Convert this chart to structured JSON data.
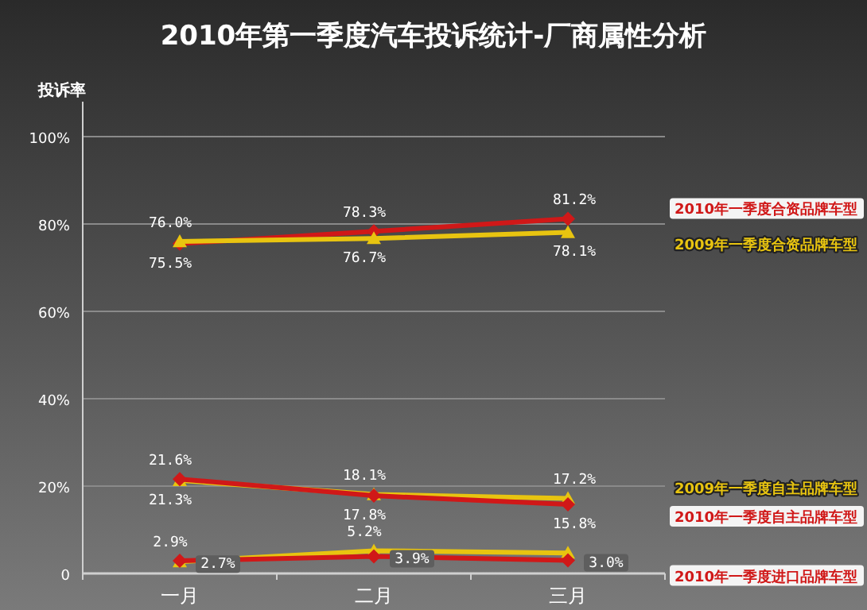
{
  "chart_data": {
    "type": "line",
    "title": "2010年第一季度汽车投诉统计-厂商属性分析",
    "ylabel": "投诉率",
    "categories": [
      "一月",
      "二月",
      "三月"
    ],
    "ylim": [
      0,
      100
    ],
    "yticks": [
      {
        "value": 0,
        "label": "0"
      },
      {
        "value": 20,
        "label": "20%"
      },
      {
        "value": 40,
        "label": "40%"
      },
      {
        "value": 60,
        "label": "60%"
      },
      {
        "value": 80,
        "label": "80%"
      },
      {
        "value": 100,
        "label": "100%"
      }
    ],
    "grid": "y",
    "series": [
      {
        "name": "2010年一季度合资品牌车型",
        "color": "#d01818",
        "marker": "diamond",
        "values": [
          75.5,
          78.3,
          81.2
        ],
        "value_labels": [
          "75.5%",
          "78.3%",
          "81.2%"
        ]
      },
      {
        "name": "2009年一季度合资品牌车型",
        "color": "#e8c410",
        "marker": "triangle",
        "values": [
          76.0,
          76.7,
          78.1
        ],
        "value_labels": [
          "76.0%",
          "76.7%",
          "78.1%"
        ]
      },
      {
        "name": "2009年一季度自主品牌车型",
        "color": "#e8c410",
        "marker": "triangle",
        "values": [
          21.3,
          18.1,
          17.2
        ],
        "value_labels": [
          "21.3%",
          "18.1%",
          "17.2%"
        ]
      },
      {
        "name": "2010年一季度自主品牌车型",
        "color": "#d01818",
        "marker": "diamond",
        "values": [
          21.6,
          17.8,
          15.8
        ],
        "value_labels": [
          "21.6%",
          "17.8%",
          "15.8%"
        ]
      },
      {
        "color": "#e8c410",
        "marker": "triangle",
        "values": [
          2.7,
          5.2,
          4.7
        ],
        "value_labels": [
          "2.7%",
          "5.2%",
          null
        ]
      },
      {
        "name": "2010年一季度进口品牌车型",
        "color": "#d01818",
        "marker": "diamond",
        "values": [
          2.9,
          3.9,
          3.0
        ],
        "value_labels": [
          "2.9%",
          "3.9%",
          "3.0%"
        ]
      }
    ]
  }
}
